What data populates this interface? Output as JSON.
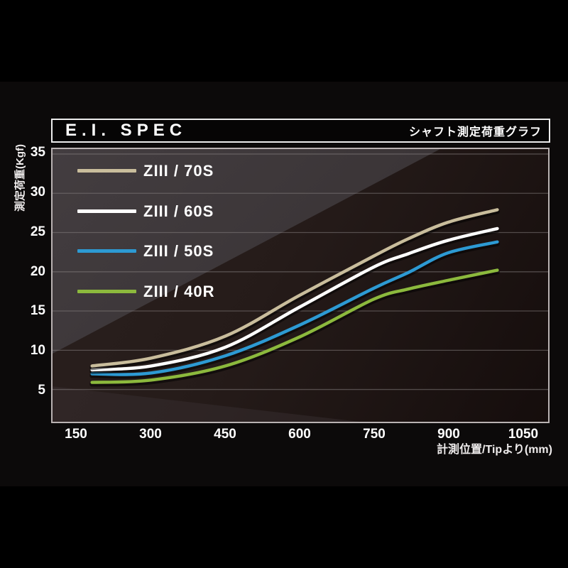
{
  "header": {
    "title": "E.I. SPEC",
    "subtitle": "シャフト測定荷重グラフ"
  },
  "colors": {
    "page_background": "#000000",
    "letterbox_band": "#0c0a0a",
    "header_border": "#ececec",
    "plot_border": "#b9b2b2",
    "plot_background_dark": "#241a18",
    "plot_background_light": "#3a3436",
    "gridline": "#8a8383",
    "text": "#ffffff"
  },
  "chart_data": {
    "type": "line",
    "title": "E.I. SPEC",
    "subtitle": "シャフト測定荷重グラフ",
    "xlabel": "計測位置/Tipより(mm)",
    "ylabel": "測定荷重(Kgf)",
    "x_ticks": [
      150,
      300,
      450,
      600,
      750,
      900,
      1050
    ],
    "y_ticks": [
      35,
      30,
      25,
      20,
      15,
      10,
      5
    ],
    "xlim": [
      100,
      1100
    ],
    "ylim": [
      1.3,
      35.6
    ],
    "grid": "horizontal",
    "legend_position": "top-left",
    "x": [
      180,
      300,
      450,
      600,
      750,
      820,
      900,
      1000
    ],
    "series": [
      {
        "name": "ZIII / 70S",
        "color": "#c9bd9c",
        "values": [
          8.0,
          9.0,
          11.8,
          17.0,
          22.0,
          24.2,
          26.3,
          27.9
        ]
      },
      {
        "name": "ZIII / 60S",
        "color": "#ffffff",
        "values": [
          7.5,
          8.0,
          10.4,
          15.5,
          20.6,
          22.3,
          24.0,
          25.5
        ]
      },
      {
        "name": "ZIII / 50S",
        "color": "#2d9ad3",
        "values": [
          7.0,
          7.1,
          9.3,
          13.2,
          17.9,
          19.9,
          22.4,
          23.8
        ]
      },
      {
        "name": "ZIII / 40R",
        "color": "#8cb93d",
        "values": [
          5.9,
          6.2,
          8.0,
          11.7,
          16.5,
          17.8,
          18.9,
          20.2
        ]
      }
    ]
  }
}
